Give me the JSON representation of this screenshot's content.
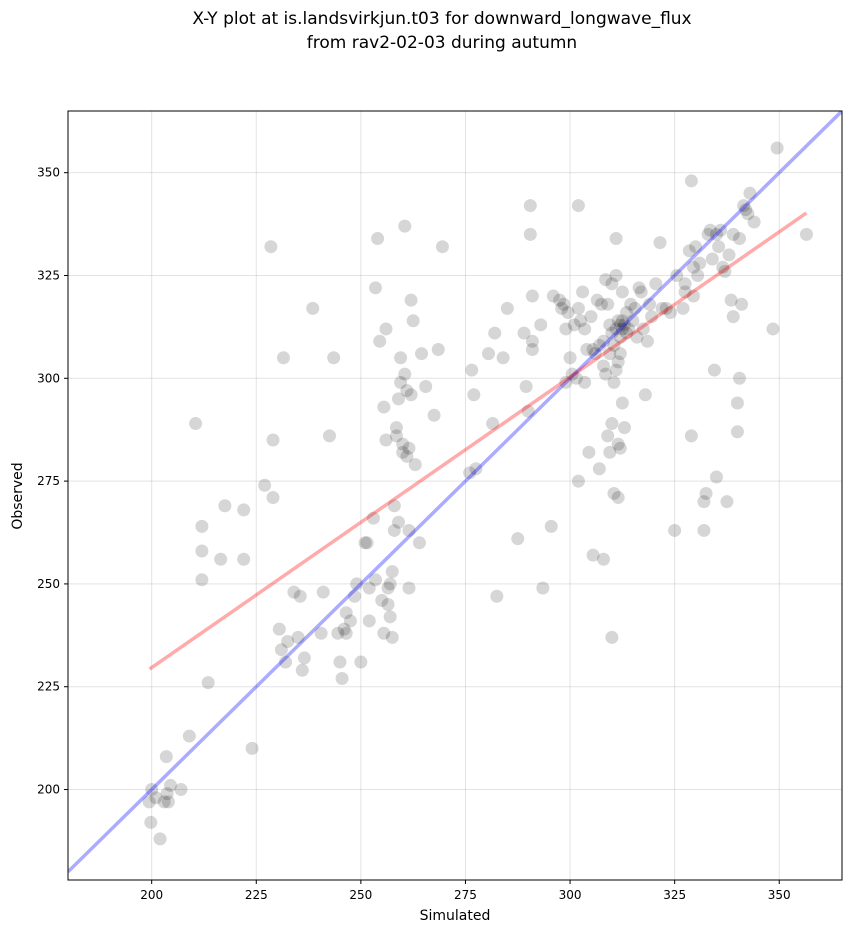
{
  "chart_data": {
    "type": "scatter",
    "title_lines": [
      "X-Y plot at is.landsvirkjun.t03 for downward_longwave_flux",
      "from rav2-02-03 during autumn"
    ],
    "xlabel": "Simulated",
    "ylabel": "Observed",
    "xlim": [
      180,
      365
    ],
    "ylim": [
      178,
      365
    ],
    "xticks": [
      200,
      225,
      250,
      275,
      300,
      325,
      350
    ],
    "yticks": [
      200,
      225,
      250,
      275,
      300,
      325,
      350
    ],
    "grid": true,
    "colors": {
      "points": "#000000",
      "identity_line": "#0000ff",
      "regression_line": "#ff0000"
    },
    "identity_line": {
      "from": [
        180,
        180
      ],
      "to": [
        365,
        365
      ]
    },
    "regression_line": {
      "from": [
        199.5,
        229.3
      ],
      "to": [
        356.5,
        340.2
      ]
    },
    "points": [
      [
        199.4,
        197
      ],
      [
        200.0,
        200
      ],
      [
        199.8,
        192
      ],
      [
        201.0,
        198
      ],
      [
        202.0,
        188
      ],
      [
        203.0,
        197
      ],
      [
        203.7,
        199
      ],
      [
        204.5,
        201
      ],
      [
        203.5,
        208
      ],
      [
        204.0,
        197
      ],
      [
        207.0,
        200
      ],
      [
        209.0,
        213
      ],
      [
        210.5,
        289
      ],
      [
        212.0,
        264
      ],
      [
        212.0,
        258
      ],
      [
        212.0,
        251
      ],
      [
        213.5,
        226
      ],
      [
        216.5,
        256
      ],
      [
        217.5,
        269
      ],
      [
        222.0,
        268
      ],
      [
        222.0,
        256
      ],
      [
        224.0,
        210
      ],
      [
        227.0,
        274
      ],
      [
        228.5,
        332
      ],
      [
        229.0,
        285
      ],
      [
        229.0,
        271
      ],
      [
        230.5,
        239
      ],
      [
        231.0,
        234
      ],
      [
        231.5,
        305
      ],
      [
        232.0,
        231
      ],
      [
        232.5,
        236
      ],
      [
        234.0,
        248
      ],
      [
        235.0,
        237
      ],
      [
        235.5,
        247
      ],
      [
        236.0,
        229
      ],
      [
        236.5,
        232
      ],
      [
        238.5,
        317
      ],
      [
        240.5,
        238
      ],
      [
        241.0,
        248
      ],
      [
        242.5,
        286
      ],
      [
        243.5,
        305
      ],
      [
        244.5,
        238
      ],
      [
        245.0,
        231
      ],
      [
        245.5,
        227
      ],
      [
        246.0,
        239
      ],
      [
        246.5,
        238
      ],
      [
        246.5,
        243
      ],
      [
        247.5,
        241
      ],
      [
        248.5,
        247
      ],
      [
        249.0,
        250
      ],
      [
        250.0,
        231
      ],
      [
        251.0,
        260
      ],
      [
        251.5,
        260
      ],
      [
        252.0,
        249
      ],
      [
        252.0,
        241
      ],
      [
        253.0,
        266
      ],
      [
        253.5,
        251
      ],
      [
        253.5,
        322
      ],
      [
        254.0,
        334
      ],
      [
        254.5,
        309
      ],
      [
        255.0,
        246
      ],
      [
        255.5,
        293
      ],
      [
        255.5,
        238
      ],
      [
        256.0,
        312
      ],
      [
        256.0,
        285
      ],
      [
        256.5,
        245
      ],
      [
        256.5,
        249
      ],
      [
        257.0,
        242
      ],
      [
        257.0,
        250
      ],
      [
        257.5,
        237
      ],
      [
        257.5,
        253
      ],
      [
        258.0,
        263
      ],
      [
        258.0,
        269
      ],
      [
        258.5,
        286
      ],
      [
        258.5,
        288
      ],
      [
        259.0,
        295
      ],
      [
        259.0,
        265
      ],
      [
        259.5,
        299
      ],
      [
        259.5,
        305
      ],
      [
        260.0,
        284
      ],
      [
        260.0,
        282
      ],
      [
        260.5,
        337
      ],
      [
        260.5,
        301
      ],
      [
        261.0,
        297
      ],
      [
        261.0,
        281
      ],
      [
        261.5,
        283
      ],
      [
        261.5,
        263
      ],
      [
        261.5,
        249
      ],
      [
        262.0,
        319
      ],
      [
        262.0,
        296
      ],
      [
        262.5,
        314
      ],
      [
        263.0,
        279
      ],
      [
        264.0,
        260
      ],
      [
        264.5,
        306
      ],
      [
        265.5,
        298
      ],
      [
        267.5,
        291
      ],
      [
        268.5,
        307
      ],
      [
        269.5,
        332
      ],
      [
        276.0,
        277
      ],
      [
        276.5,
        302
      ],
      [
        277.0,
        296
      ],
      [
        277.5,
        278
      ],
      [
        280.5,
        306
      ],
      [
        281.5,
        289
      ],
      [
        282.0,
        311
      ],
      [
        282.5,
        247
      ],
      [
        284.0,
        305
      ],
      [
        285.0,
        317
      ],
      [
        287.5,
        261
      ],
      [
        289.0,
        311
      ],
      [
        289.5,
        298
      ],
      [
        290.0,
        292
      ],
      [
        290.5,
        342
      ],
      [
        290.5,
        335
      ],
      [
        291.0,
        320
      ],
      [
        291.0,
        309
      ],
      [
        291.0,
        307
      ],
      [
        293.0,
        313
      ],
      [
        293.5,
        249
      ],
      [
        295.5,
        264
      ],
      [
        296.0,
        320
      ],
      [
        297.5,
        319
      ],
      [
        298.0,
        317
      ],
      [
        298.5,
        318
      ],
      [
        299.0,
        312
      ],
      [
        299.0,
        299
      ],
      [
        299.5,
        316
      ],
      [
        300.0,
        305
      ],
      [
        300.5,
        301
      ],
      [
        301.0,
        313
      ],
      [
        301.5,
        300
      ],
      [
        302.0,
        342
      ],
      [
        302.0,
        317
      ],
      [
        302.0,
        275
      ],
      [
        302.5,
        314
      ],
      [
        303.0,
        321
      ],
      [
        303.5,
        312
      ],
      [
        303.5,
        299
      ],
      [
        304.0,
        307
      ],
      [
        304.5,
        282
      ],
      [
        305.0,
        315
      ],
      [
        305.5,
        307
      ],
      [
        305.5,
        257
      ],
      [
        306.0,
        306
      ],
      [
        306.5,
        319
      ],
      [
        307.0,
        308
      ],
      [
        307.0,
        278
      ],
      [
        307.5,
        318
      ],
      [
        308.0,
        309
      ],
      [
        308.0,
        303
      ],
      [
        308.0,
        256
      ],
      [
        308.5,
        324
      ],
      [
        308.5,
        301
      ],
      [
        309.0,
        318
      ],
      [
        309.0,
        286
      ],
      [
        309.5,
        313
      ],
      [
        309.5,
        306
      ],
      [
        309.5,
        282
      ],
      [
        310.0,
        323
      ],
      [
        310.0,
        311
      ],
      [
        310.0,
        289
      ],
      [
        310.0,
        237
      ],
      [
        310.5,
        308
      ],
      [
        310.5,
        299
      ],
      [
        310.5,
        272
      ],
      [
        311.0,
        334
      ],
      [
        311.0,
        325
      ],
      [
        311.0,
        312
      ],
      [
        311.0,
        302
      ],
      [
        311.5,
        314
      ],
      [
        311.5,
        304
      ],
      [
        311.5,
        284
      ],
      [
        311.5,
        271
      ],
      [
        312.0,
        313
      ],
      [
        312.0,
        310
      ],
      [
        312.0,
        306
      ],
      [
        312.0,
        283
      ],
      [
        312.5,
        321
      ],
      [
        312.5,
        314
      ],
      [
        312.5,
        312
      ],
      [
        312.5,
        294
      ],
      [
        313.0,
        313
      ],
      [
        313.0,
        288
      ],
      [
        313.5,
        316
      ],
      [
        313.5,
        311
      ],
      [
        314.0,
        312
      ],
      [
        314.5,
        318
      ],
      [
        315.0,
        314
      ],
      [
        315.5,
        317
      ],
      [
        316.0,
        310
      ],
      [
        316.5,
        322
      ],
      [
        317.0,
        321
      ],
      [
        317.5,
        312
      ],
      [
        318.0,
        296
      ],
      [
        318.5,
        309
      ],
      [
        319.0,
        318
      ],
      [
        319.5,
        315
      ],
      [
        320.5,
        323
      ],
      [
        321.5,
        333
      ],
      [
        322.0,
        317
      ],
      [
        323.0,
        317
      ],
      [
        324.0,
        316
      ],
      [
        325.0,
        263
      ],
      [
        325.5,
        325
      ],
      [
        327.0,
        317
      ],
      [
        327.5,
        323
      ],
      [
        327.5,
        321
      ],
      [
        328.5,
        331
      ],
      [
        329.0,
        348
      ],
      [
        329.0,
        286
      ],
      [
        329.5,
        320
      ],
      [
        329.5,
        327
      ],
      [
        330.0,
        332
      ],
      [
        330.5,
        325
      ],
      [
        331.0,
        328
      ],
      [
        332.0,
        263
      ],
      [
        332.0,
        270
      ],
      [
        332.5,
        272
      ],
      [
        333.0,
        335
      ],
      [
        333.5,
        336
      ],
      [
        334.0,
        329
      ],
      [
        334.5,
        302
      ],
      [
        335.0,
        335
      ],
      [
        335.0,
        276
      ],
      [
        335.5,
        332
      ],
      [
        336.0,
        336
      ],
      [
        336.5,
        327
      ],
      [
        337.0,
        326
      ],
      [
        337.5,
        270
      ],
      [
        338.0,
        330
      ],
      [
        338.5,
        319
      ],
      [
        339.0,
        335
      ],
      [
        339.0,
        315
      ],
      [
        340.0,
        294
      ],
      [
        340.0,
        287
      ],
      [
        340.5,
        334
      ],
      [
        340.5,
        300
      ],
      [
        341.0,
        318
      ],
      [
        341.5,
        342
      ],
      [
        342.0,
        341
      ],
      [
        342.5,
        340
      ],
      [
        343.0,
        345
      ],
      [
        344.0,
        338
      ],
      [
        348.5,
        312
      ],
      [
        349.5,
        356
      ],
      [
        356.5,
        335
      ]
    ]
  }
}
